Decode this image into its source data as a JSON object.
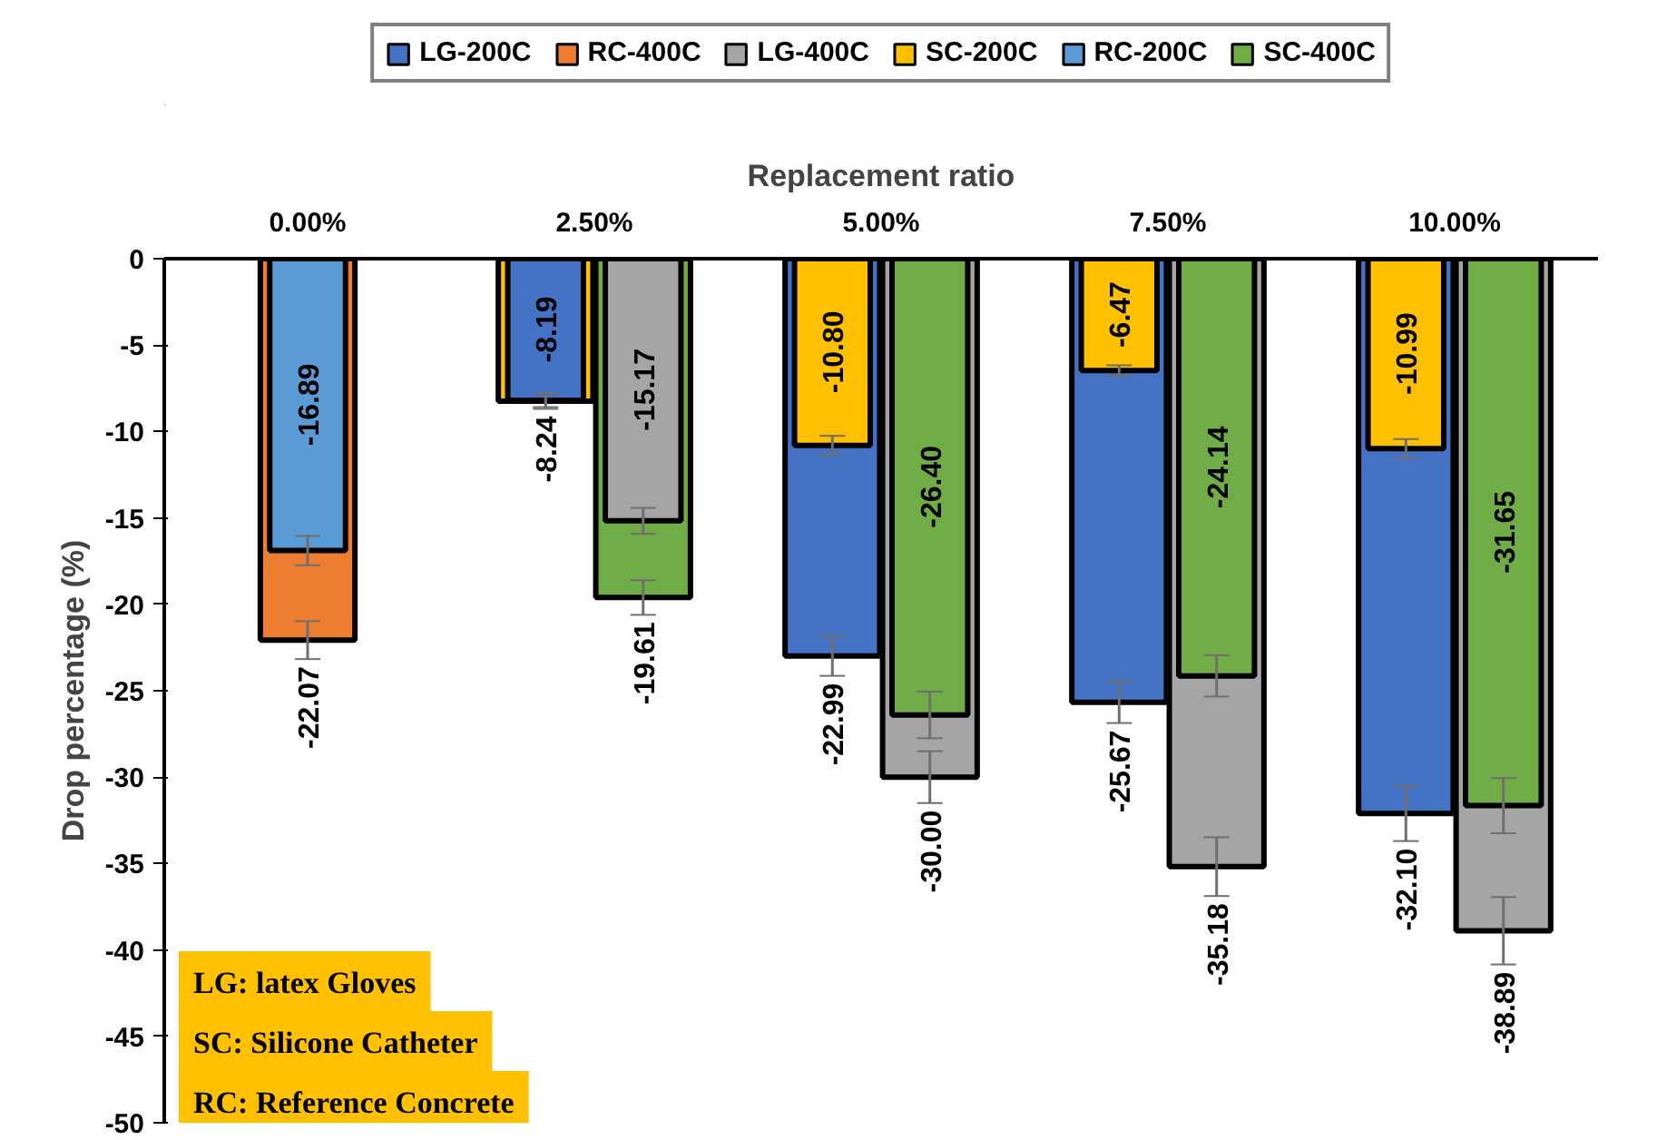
{
  "chart_data": {
    "type": "bar",
    "xlabel": "Replacement ratio",
    "ylabel": "Drop percentage (%)",
    "categories": [
      "0.00%",
      "2.50%",
      "5.00%",
      "7.50%",
      "10.00%"
    ],
    "series": [
      {
        "name": "LG-200C",
        "color": "#4472c4",
        "values": [
          null,
          -8.19,
          -22.99,
          -25.67,
          -32.1
        ],
        "value_labels": [
          null,
          "-8.19",
          "-22.99",
          "-25.67",
          "-32.10"
        ],
        "errors": [
          null,
          0.4,
          1.15,
          1.2,
          1.6
        ]
      },
      {
        "name": "RC-400C",
        "color": "#ed7d31",
        "values": [
          -22.07,
          null,
          null,
          null,
          null
        ],
        "value_labels": [
          "-22.07",
          null,
          null,
          null,
          null
        ],
        "errors": [
          1.1,
          null,
          null,
          null,
          null
        ]
      },
      {
        "name": "LG-400C",
        "color": "#a5a5a5",
        "values": [
          null,
          -15.17,
          -30.0,
          -35.18,
          -38.89
        ],
        "value_labels": [
          null,
          "-15.17",
          "-30.00",
          "-35.18",
          "-38.89"
        ],
        "errors": [
          null,
          0.75,
          1.5,
          1.7,
          1.95
        ]
      },
      {
        "name": "SC-200C",
        "color": "#ffc000",
        "values": [
          null,
          -8.24,
          -10.8,
          -6.47,
          -10.99
        ],
        "value_labels": [
          null,
          "-8.24",
          "-10.80",
          "-6.47",
          "-10.99"
        ],
        "errors": [
          null,
          0.45,
          0.55,
          0.3,
          0.55
        ]
      },
      {
        "name": "RC-200C",
        "color": "#5b9bd5",
        "values": [
          -16.89,
          null,
          null,
          null,
          null
        ],
        "value_labels": [
          "-16.89",
          null,
          null,
          null,
          null
        ],
        "errors": [
          0.85,
          null,
          null,
          null,
          null
        ]
      },
      {
        "name": "SC-400C",
        "color": "#70ad47",
        "values": [
          null,
          -19.61,
          -26.4,
          -24.14,
          -31.65
        ],
        "value_labels": [
          null,
          "-19.61",
          "-26.40",
          "-24.14",
          "-31.65"
        ],
        "errors": [
          null,
          1.0,
          1.35,
          1.2,
          1.6
        ]
      }
    ],
    "ylim": [
      -50,
      0
    ],
    "yticks": [
      0,
      -5,
      -10,
      -15,
      -20,
      -25,
      -30,
      -35,
      -40,
      -45,
      -50
    ],
    "legend": "top",
    "annotations": [
      "LG: latex Gloves",
      "SC: Silicone Catheter",
      "RC: Reference Concrete"
    ]
  }
}
